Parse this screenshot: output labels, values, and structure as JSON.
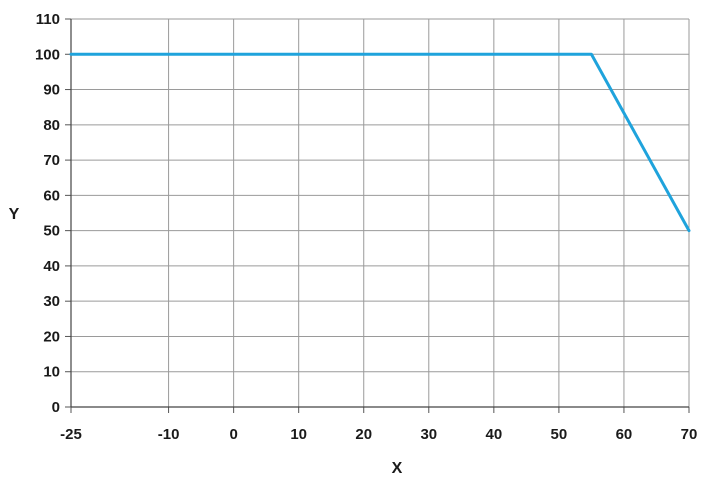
{
  "chart_data": {
    "type": "line",
    "xlabel": "X",
    "ylabel": "Y",
    "xlim": [
      -25,
      70
    ],
    "ylim": [
      0,
      110
    ],
    "x_ticks": [
      -25,
      -10,
      0,
      10,
      20,
      30,
      40,
      50,
      60,
      70
    ],
    "y_ticks": [
      0,
      10,
      20,
      30,
      40,
      50,
      60,
      70,
      80,
      90,
      100,
      110
    ],
    "grid": true,
    "series": [
      {
        "color": "#1fa3dc",
        "x": [
          -25,
          55,
          70
        ],
        "y": [
          100,
          100,
          50
        ]
      }
    ]
  }
}
